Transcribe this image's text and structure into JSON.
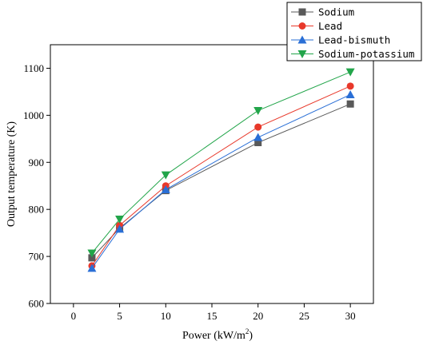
{
  "chart_data": {
    "type": "line",
    "title": "",
    "xlabel": "Power (kW/m",
    "xlabel_superscript": "2",
    "xlabel_suffix": ")",
    "ylabel": "Output temperature (K)",
    "xlim": [
      -2.5,
      32.5
    ],
    "ylim": [
      600,
      1150
    ],
    "xticks": [
      "0",
      "5",
      "10",
      "15",
      "20",
      "25",
      "30"
    ],
    "yticks": [
      "600",
      "700",
      "800",
      "900",
      "1000",
      "1100"
    ],
    "grid": false,
    "legend_position": "top-right",
    "x": [
      2,
      5,
      10,
      20,
      30
    ],
    "series": [
      {
        "name": "Sodium",
        "values": [
          697,
          760,
          840,
          942,
          1024
        ],
        "color": "#595959",
        "marker": "square"
      },
      {
        "name": "Lead",
        "values": [
          680,
          766,
          850,
          975,
          1062
        ],
        "color": "#e8382a",
        "marker": "circle"
      },
      {
        "name": "Lead-bismuth",
        "values": [
          675,
          758,
          842,
          953,
          1044
        ],
        "color": "#2a6fd6",
        "marker": "triangle-up"
      },
      {
        "name": "Sodium-potassium",
        "values": [
          707,
          779,
          873,
          1010,
          1092
        ],
        "color": "#22a54a",
        "marker": "triangle-down"
      }
    ]
  }
}
